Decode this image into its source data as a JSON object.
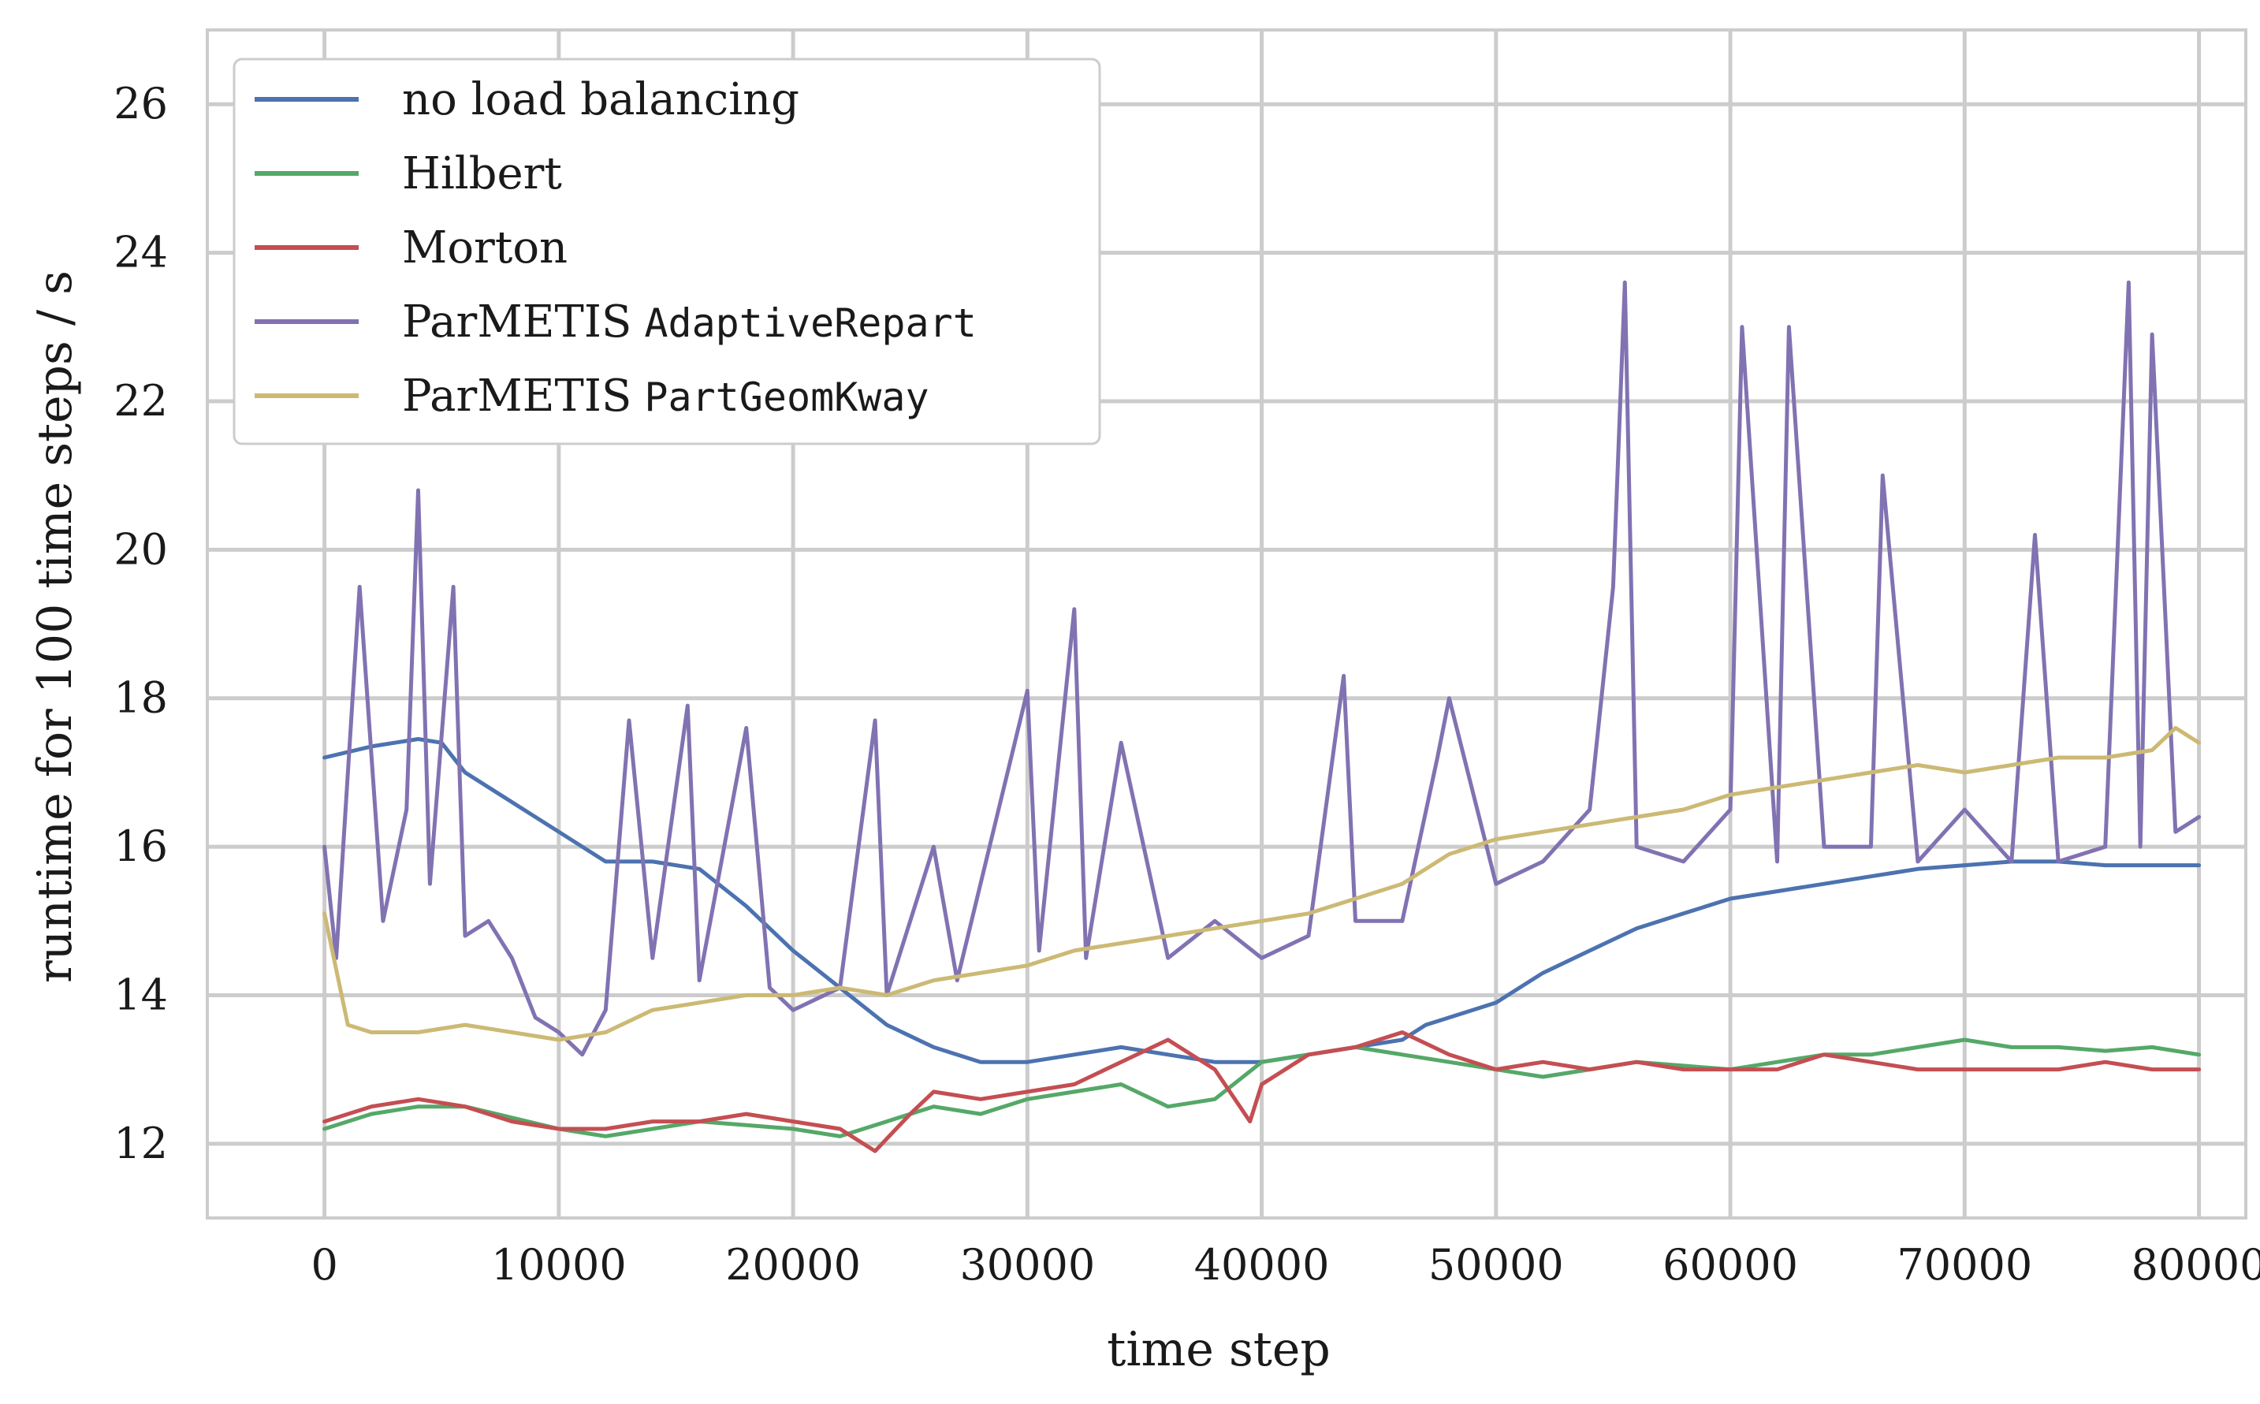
{
  "chart_data": {
    "type": "line",
    "title": "",
    "xlabel": "time step",
    "ylabel": "runtime for 100 time steps / s",
    "xlim": [
      -5000,
      82000
    ],
    "ylim": [
      11,
      27
    ],
    "xticks": [
      0,
      10000,
      20000,
      30000,
      40000,
      50000,
      60000,
      70000,
      80000
    ],
    "xtick_labels": [
      "0",
      "10000",
      "20000",
      "30000",
      "40000",
      "50000",
      "60000",
      "70000",
      "80000"
    ],
    "yticks": [
      12,
      14,
      16,
      18,
      20,
      22,
      24,
      26
    ],
    "ytick_labels": [
      "12",
      "14",
      "16",
      "18",
      "20",
      "22",
      "24",
      "26"
    ],
    "grid": true,
    "legend_position": "top-left",
    "series": [
      {
        "name": "no load balancing",
        "name_text": "no load balancing",
        "name_code": "",
        "color": "#4c72b0",
        "x": [
          0,
          2000,
          4000,
          5000,
          6000,
          8000,
          10000,
          12000,
          14000,
          16000,
          18000,
          20000,
          22000,
          24000,
          26000,
          28000,
          30000,
          32000,
          34000,
          36000,
          38000,
          40000,
          42000,
          44000,
          46000,
          47000,
          48000,
          50000,
          52000,
          54000,
          56000,
          58000,
          60000,
          62000,
          64000,
          66000,
          68000,
          70000,
          72000,
          74000,
          76000,
          78000,
          80000
        ],
        "values": [
          17.2,
          17.35,
          17.45,
          17.4,
          17.0,
          16.6,
          16.2,
          15.8,
          15.8,
          15.7,
          15.2,
          14.6,
          14.1,
          13.6,
          13.3,
          13.1,
          13.1,
          13.2,
          13.3,
          13.2,
          13.1,
          13.1,
          13.2,
          13.3,
          13.4,
          13.6,
          13.7,
          13.9,
          14.3,
          14.6,
          14.9,
          15.1,
          15.3,
          15.4,
          15.5,
          15.6,
          15.7,
          15.75,
          15.8,
          15.8,
          15.75,
          15.75,
          15.75
        ]
      },
      {
        "name": "Hilbert",
        "name_text": "Hilbert",
        "name_code": "",
        "color": "#55a868",
        "x": [
          0,
          2000,
          4000,
          6000,
          8000,
          10000,
          12000,
          14000,
          16000,
          18000,
          20000,
          22000,
          24000,
          26000,
          28000,
          30000,
          32000,
          34000,
          36000,
          38000,
          40000,
          42000,
          44000,
          46000,
          48000,
          50000,
          52000,
          54000,
          56000,
          58000,
          60000,
          62000,
          64000,
          66000,
          68000,
          70000,
          72000,
          74000,
          76000,
          78000,
          80000
        ],
        "values": [
          12.2,
          12.4,
          12.5,
          12.5,
          12.35,
          12.2,
          12.1,
          12.2,
          12.3,
          12.25,
          12.2,
          12.1,
          12.3,
          12.5,
          12.4,
          12.6,
          12.7,
          12.8,
          12.5,
          12.6,
          13.1,
          13.2,
          13.3,
          13.2,
          13.1,
          13.0,
          12.9,
          13.0,
          13.1,
          13.05,
          13.0,
          13.1,
          13.2,
          13.2,
          13.3,
          13.4,
          13.3,
          13.3,
          13.25,
          13.3,
          13.2
        ]
      },
      {
        "name": "Morton",
        "name_text": "Morton",
        "name_code": "",
        "color": "#c44e52",
        "x": [
          0,
          2000,
          4000,
          6000,
          8000,
          10000,
          12000,
          14000,
          16000,
          18000,
          20000,
          22000,
          23500,
          25000,
          26000,
          28000,
          30000,
          32000,
          34000,
          36000,
          38000,
          39500,
          40000,
          42000,
          44000,
          46000,
          48000,
          50000,
          52000,
          54000,
          56000,
          58000,
          60000,
          62000,
          64000,
          66000,
          68000,
          70000,
          72000,
          74000,
          76000,
          78000,
          80000
        ],
        "values": [
          12.3,
          12.5,
          12.6,
          12.5,
          12.3,
          12.2,
          12.2,
          12.3,
          12.3,
          12.4,
          12.3,
          12.2,
          11.9,
          12.4,
          12.7,
          12.6,
          12.7,
          12.8,
          13.1,
          13.4,
          13.0,
          12.3,
          12.8,
          13.2,
          13.3,
          13.5,
          13.2,
          13.0,
          13.1,
          13.0,
          13.1,
          13.0,
          13.0,
          13.0,
          13.2,
          13.1,
          13.0,
          13.0,
          13.0,
          13.0,
          13.1,
          13.0,
          13.0
        ]
      },
      {
        "name": "ParMETIS AdaptiveRepart",
        "name_text": "ParMETIS",
        "name_code": "AdaptiveRepart",
        "color": "#8172b2",
        "x": [
          0,
          500,
          1500,
          2500,
          3500,
          4000,
          4500,
          5500,
          6000,
          7000,
          8000,
          9000,
          10000,
          11000,
          12000,
          13000,
          14000,
          15500,
          16000,
          18000,
          19000,
          20000,
          22000,
          23500,
          24000,
          26000,
          27000,
          30000,
          30500,
          32000,
          32500,
          34000,
          36000,
          38000,
          40000,
          42000,
          43500,
          44000,
          46000,
          47500,
          48000,
          50000,
          52000,
          54000,
          55000,
          55500,
          56000,
          58000,
          60000,
          60500,
          62000,
          62500,
          64000,
          66000,
          66500,
          68000,
          70000,
          72000,
          73000,
          74000,
          76000,
          77000,
          77500,
          78000,
          79000,
          80000
        ],
        "values": [
          16.0,
          14.5,
          19.5,
          15.0,
          16.5,
          20.8,
          15.5,
          19.5,
          14.8,
          15.0,
          14.5,
          13.7,
          13.5,
          13.2,
          13.8,
          17.7,
          14.5,
          17.9,
          14.2,
          17.6,
          14.1,
          13.8,
          14.1,
          17.7,
          14.0,
          16.0,
          14.2,
          18.1,
          14.6,
          19.2,
          14.5,
          17.4,
          14.5,
          15.0,
          14.5,
          14.8,
          18.3,
          15.0,
          15.0,
          17.2,
          18.0,
          15.5,
          15.8,
          16.5,
          19.5,
          23.6,
          16.0,
          15.8,
          16.5,
          23.0,
          15.8,
          23.0,
          16.0,
          16.0,
          21.0,
          15.8,
          16.5,
          15.8,
          20.2,
          15.8,
          16.0,
          23.6,
          16.0,
          22.9,
          16.2,
          16.4
        ]
      },
      {
        "name": "ParMETIS PartGeomKway",
        "name_text": "ParMETIS",
        "name_code": "PartGeomKway",
        "color": "#ccb974",
        "x": [
          0,
          1000,
          2000,
          4000,
          6000,
          8000,
          10000,
          12000,
          14000,
          16000,
          18000,
          20000,
          22000,
          24000,
          26000,
          28000,
          30000,
          32000,
          34000,
          36000,
          38000,
          40000,
          42000,
          44000,
          46000,
          48000,
          50000,
          52000,
          54000,
          56000,
          58000,
          60000,
          62000,
          64000,
          66000,
          68000,
          70000,
          72000,
          74000,
          76000,
          78000,
          79000,
          80000
        ],
        "values": [
          15.1,
          13.6,
          13.5,
          13.5,
          13.6,
          13.5,
          13.4,
          13.5,
          13.8,
          13.9,
          14.0,
          14.0,
          14.1,
          14.0,
          14.2,
          14.3,
          14.4,
          14.6,
          14.7,
          14.8,
          14.9,
          15.0,
          15.1,
          15.3,
          15.5,
          15.9,
          16.1,
          16.2,
          16.3,
          16.4,
          16.5,
          16.7,
          16.8,
          16.9,
          17.0,
          17.1,
          17.0,
          17.1,
          17.2,
          17.2,
          17.3,
          17.6,
          17.4
        ]
      }
    ]
  }
}
